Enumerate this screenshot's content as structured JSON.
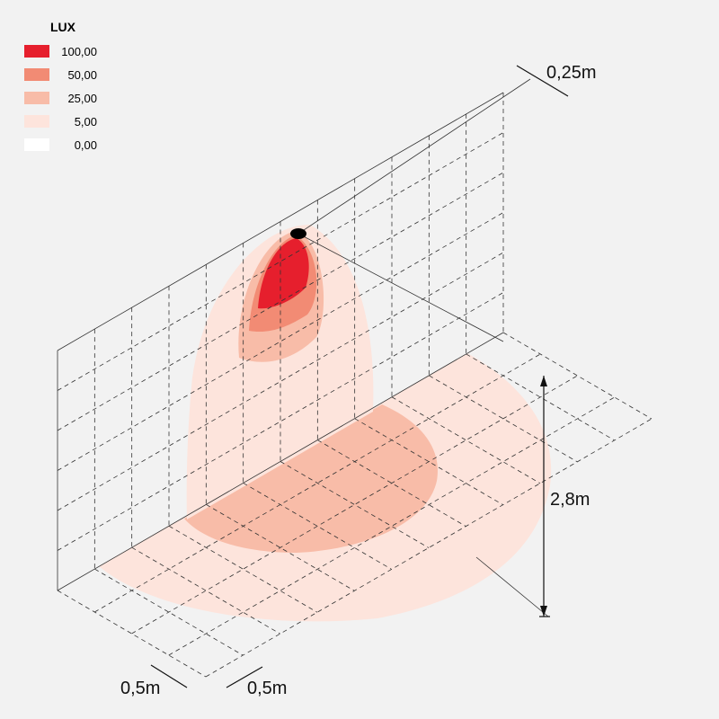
{
  "legend": {
    "title": "LUX",
    "items": [
      {
        "label": "100,00",
        "color": "#e61f2d"
      },
      {
        "label": "50,00",
        "color": "#f28b74"
      },
      {
        "label": "25,00",
        "color": "#f8bca8"
      },
      {
        "label": "5,00",
        "color": "#fde4dc"
      },
      {
        "label": "0,00",
        "color": "#ffffff"
      }
    ]
  },
  "dimensions": {
    "offset": "0,25m",
    "height": "2,8m",
    "grid_depth": "0,5m",
    "grid_width": "0,5m"
  }
}
